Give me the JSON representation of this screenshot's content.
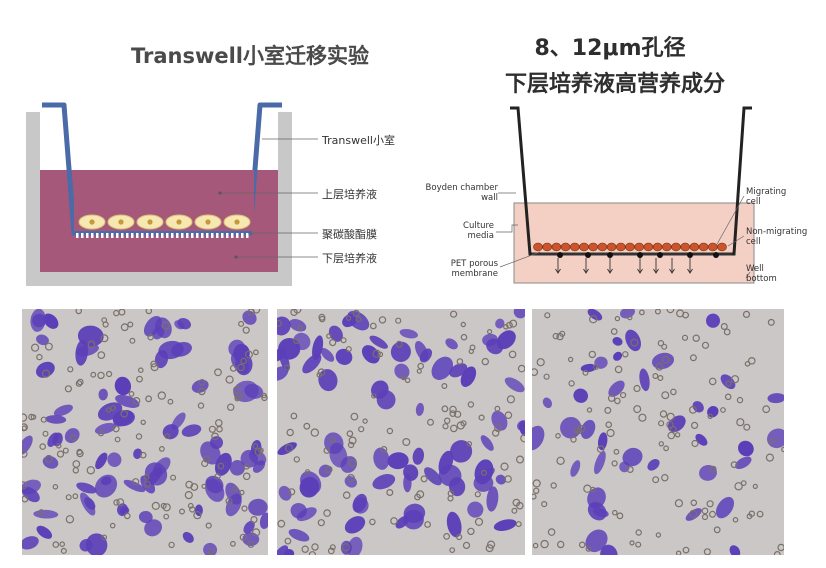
{
  "left_diagram": {
    "title": "Transwell小室迁移实验",
    "labels": {
      "insert": "Transwell小室",
      "upper_medium": "上层培养液",
      "membrane": "聚碳酸酯膜",
      "lower_medium": "下层培养液"
    },
    "colors": {
      "medium": "#a5587a",
      "insert": "#4a6aa8",
      "well": "#c8c8c8",
      "cell": "#f7e7b0"
    }
  },
  "right_diagram": {
    "title_line1": "8、12μm孔径",
    "title_line2": "下层培养液高营养成分",
    "labels": {
      "chamber_wall": "Boyden chamber\nwall",
      "culture_media": "Culture\nmedia",
      "pet_membrane": "PET porous\nmembrane",
      "migrating_cell": "Migrating\ncell",
      "non_migrating_cell": "Non-migrating\ncell",
      "well_bottom": "Well\nbottom"
    },
    "colors": {
      "medium": "#f4cfc4",
      "cell": "#c9552a"
    }
  },
  "micrographs": {
    "count": 3,
    "colors": {
      "background": "#cbc7c6",
      "stain": "#5b3fb8",
      "pore": "#7a706a"
    }
  }
}
